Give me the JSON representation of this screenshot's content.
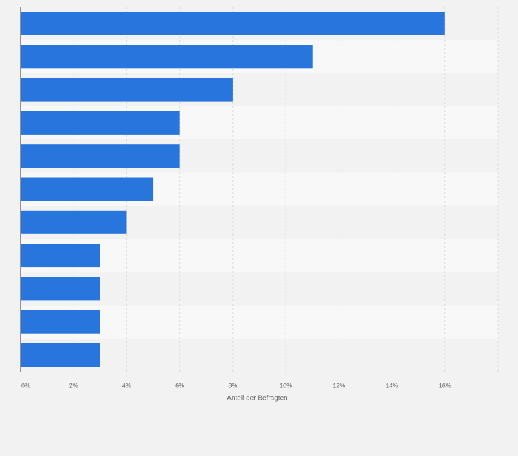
{
  "colors": {
    "bar": "#2876dd",
    "band_dark": "#f2f2f2",
    "band_light": "#f8f8f8",
    "grid": "#dcdcdc",
    "axis": "#333333",
    "tick_text": "#666666"
  },
  "chart_data": {
    "type": "bar",
    "orientation": "horizontal",
    "categories": [
      "",
      "",
      "",
      "",
      "",
      "",
      "",
      "",
      "",
      "",
      ""
    ],
    "values": [
      16,
      11,
      8,
      6,
      6,
      5,
      4,
      3,
      3,
      3,
      3
    ],
    "value_unit": "%",
    "xlim": [
      0,
      18
    ],
    "xticks": [
      0,
      2,
      4,
      6,
      8,
      10,
      12,
      14,
      16
    ],
    "tick_labels": [
      "0%",
      "2%",
      "4%",
      "6%",
      "8%",
      "10%",
      "12%",
      "14%",
      "16%"
    ],
    "xlabel": "Anteil der Befragten",
    "title": "",
    "grid": true,
    "legend": "none"
  }
}
